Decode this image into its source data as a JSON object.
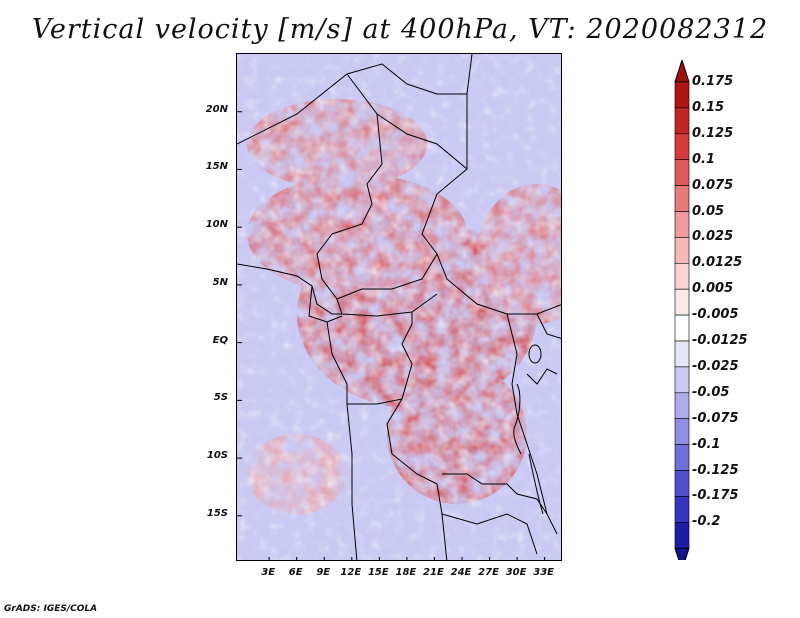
{
  "title": "Vertical velocity [m/s] at 400hPa, VT: 2020082312",
  "footer": "GrADS: IGES/COLA",
  "map": {
    "region": "Central Africa",
    "lat_range": [
      -19,
      25
    ],
    "lon_range": [
      -0.5,
      35
    ]
  },
  "y_axis": {
    "ticks": [
      {
        "label": "20N",
        "lat": 20
      },
      {
        "label": "15N",
        "lat": 15
      },
      {
        "label": "10N",
        "lat": 10
      },
      {
        "label": "5N",
        "lat": 5
      },
      {
        "label": "EQ",
        "lat": 0
      },
      {
        "label": "5S",
        "lat": -5
      },
      {
        "label": "10S",
        "lat": -10
      },
      {
        "label": "15S",
        "lat": -15
      }
    ]
  },
  "x_axis": {
    "ticks": [
      {
        "label": "3E",
        "lon": 3
      },
      {
        "label": "6E",
        "lon": 6
      },
      {
        "label": "9E",
        "lon": 9
      },
      {
        "label": "12E",
        "lon": 12
      },
      {
        "label": "15E",
        "lon": 15
      },
      {
        "label": "18E",
        "lon": 18
      },
      {
        "label": "21E",
        "lon": 21
      },
      {
        "label": "24E",
        "lon": 24
      },
      {
        "label": "27E",
        "lon": 27
      },
      {
        "label": "30E",
        "lon": 30
      },
      {
        "label": "33E",
        "lon": 33
      }
    ]
  },
  "colorbar": {
    "levels": [
      {
        "label": "0.175",
        "color": "#b11414"
      },
      {
        "label": "0.15",
        "color": "#c42626"
      },
      {
        "label": "0.125",
        "color": "#d63c3c"
      },
      {
        "label": "0.1",
        "color": "#e05a5a"
      },
      {
        "label": "0.075",
        "color": "#e87a7a"
      },
      {
        "label": "0.05",
        "color": "#f09a9a"
      },
      {
        "label": "0.025",
        "color": "#f7b8b8"
      },
      {
        "label": "0.0125",
        "color": "#fbd2d2"
      },
      {
        "label": "0.005",
        "color": "#fde8e8"
      },
      {
        "label": "-0.005",
        "color": "#ffffff"
      },
      {
        "label": "-0.0125",
        "color": "#e6e6fa"
      },
      {
        "label": "-0.025",
        "color": "#cacaf5"
      },
      {
        "label": "-0.05",
        "color": "#adadee"
      },
      {
        "label": "-0.075",
        "color": "#8f8fe6"
      },
      {
        "label": "-0.1",
        "color": "#6f6fdc"
      },
      {
        "label": "-0.125",
        "color": "#5050d0"
      },
      {
        "label": "-0.175",
        "color": "#3535c0"
      },
      {
        "label": "-0.2",
        "color": "#1c1ca8"
      }
    ],
    "top_color": "#a00e0e",
    "bottom_color": "#14148c"
  }
}
